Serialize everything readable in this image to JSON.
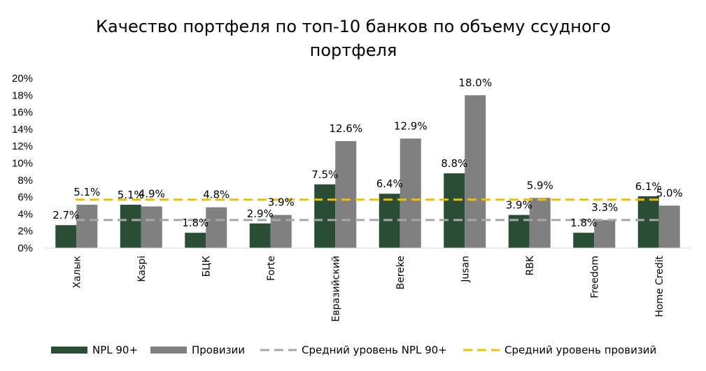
{
  "chart_data": {
    "type": "bar",
    "title_lines": [
      "Качество портфеля по топ-10 банков по объему ссудного",
      "портфеля"
    ],
    "categories": [
      "Халык",
      "Kaspi",
      "БЦК",
      "Forte",
      "Евразийский",
      "Bereke",
      "Jusan",
      "RBK",
      "Freedom",
      "Home Credit"
    ],
    "series": [
      {
        "name": "NPL 90+",
        "color": "#2a4d36",
        "values": [
          2.7,
          5.1,
          1.8,
          2.9,
          7.5,
          6.4,
          8.8,
          3.9,
          1.8,
          6.1
        ],
        "labels": [
          "2.7%",
          "5.1%",
          "1.8%",
          "2.9%",
          "7.5%",
          "6.4%",
          "8.8%",
          "3.9%",
          "1.8%",
          "6.1%"
        ]
      },
      {
        "name": "Провизии",
        "color": "#808080",
        "values": [
          5.1,
          4.9,
          4.8,
          3.9,
          12.6,
          12.9,
          18.0,
          5.9,
          3.3,
          5.0
        ],
        "labels": [
          "5.1%",
          "4.9%",
          "4.8%",
          "3.9%",
          "12.6%",
          "12.9%",
          "18.0%",
          "5.9%",
          "3.3%",
          "5.0%"
        ]
      }
    ],
    "reference_lines": [
      {
        "name": "Средний уровень NPL 90+",
        "value": 3.3,
        "color": "#a6a6a6",
        "style": "dashed"
      },
      {
        "name": "Средний уровень провизий",
        "value": 5.7,
        "color": "#f0c000",
        "style": "dashed"
      }
    ],
    "y_ticks": [
      "0%",
      "2%",
      "4%",
      "6%",
      "8%",
      "10%",
      "12%",
      "14%",
      "16%",
      "18%",
      "20%"
    ],
    "ylim": [
      0,
      20
    ],
    "legend_position": "bottom",
    "grid": false
  }
}
